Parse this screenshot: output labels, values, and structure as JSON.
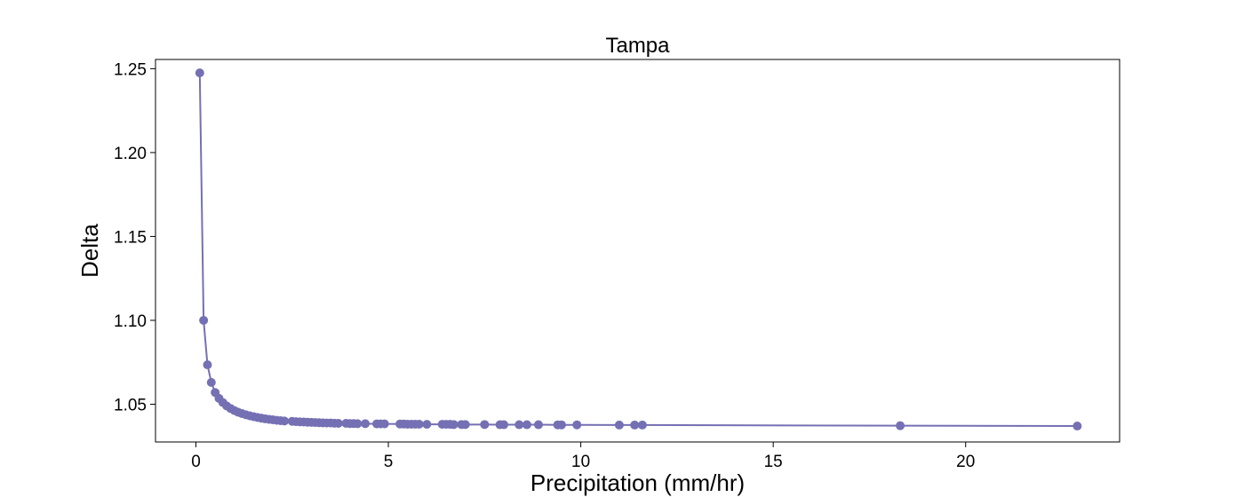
{
  "chart_data": {
    "type": "line",
    "title": "Tampa",
    "xlabel": "Precipitation (mm/hr)",
    "ylabel": "Delta",
    "xlim": [
      -1.05,
      24.0
    ],
    "ylim": [
      1.0275,
      1.2555
    ],
    "xticks": [
      0,
      5,
      10,
      15,
      20
    ],
    "yticks": [
      1.05,
      1.1,
      1.15,
      1.2,
      1.25
    ],
    "xtick_labels": [
      "0",
      "5",
      "10",
      "15",
      "20"
    ],
    "ytick_labels": [
      "1.05",
      "1.10",
      "1.15",
      "1.20",
      "1.25"
    ],
    "grid": false,
    "markers": true,
    "color": "#7570b3",
    "series": [
      {
        "x": [
          0.1,
          0.2,
          0.3,
          0.4,
          0.5,
          0.6,
          0.7,
          0.8,
          0.9,
          1.0,
          1.1,
          1.2,
          1.3,
          1.4,
          1.5,
          1.6,
          1.7,
          1.8,
          1.9,
          2.0,
          2.1,
          2.2,
          2.3,
          2.5,
          2.6,
          2.7,
          2.8,
          2.9,
          3.0,
          3.1,
          3.2,
          3.3,
          3.4,
          3.5,
          3.6,
          3.7,
          3.9,
          4.0,
          4.1,
          4.2,
          4.4,
          4.7,
          4.8,
          4.9,
          5.3,
          5.4,
          5.5,
          5.6,
          5.7,
          5.8,
          6.0,
          6.4,
          6.5,
          6.6,
          6.7,
          6.9,
          7.0,
          7.5,
          7.9,
          8.0,
          8.4,
          8.6,
          8.9,
          9.4,
          9.5,
          9.9,
          11.0,
          11.4,
          11.6,
          18.3,
          22.9
        ],
        "y": [
          1.2475,
          1.1,
          1.0735,
          1.063,
          1.057,
          1.0535,
          1.051,
          1.049,
          1.0475,
          1.0462,
          1.0452,
          1.0444,
          1.0437,
          1.0431,
          1.0426,
          1.0421,
          1.0417,
          1.0413,
          1.041,
          1.0407,
          1.0404,
          1.0402,
          1.04,
          1.0398,
          1.0396,
          1.0395,
          1.0394,
          1.0393,
          1.0392,
          1.0391,
          1.039,
          1.0389,
          1.0388,
          1.0388,
          1.0387,
          1.0386,
          1.0386,
          1.0385,
          1.0385,
          1.0384,
          1.0384,
          1.0383,
          1.0383,
          1.0383,
          1.0382,
          1.0382,
          1.0381,
          1.0381,
          1.0381,
          1.0381,
          1.038,
          1.038,
          1.038,
          1.038,
          1.0379,
          1.0379,
          1.0379,
          1.0379,
          1.0378,
          1.0378,
          1.0378,
          1.0378,
          1.0378,
          1.0377,
          1.0377,
          1.0377,
          1.0376,
          1.0376,
          1.0376,
          1.0372,
          1.037
        ]
      }
    ]
  }
}
